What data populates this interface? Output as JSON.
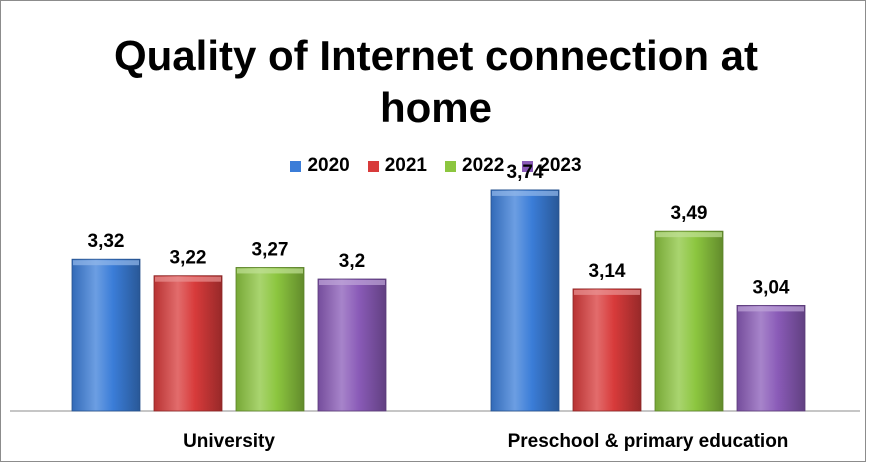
{
  "chart_data": {
    "type": "bar",
    "title_lines": [
      "Quality of Internet connection at",
      "home"
    ],
    "categories": [
      "University",
      "Preschool & primary education"
    ],
    "series": [
      {
        "name": "2020",
        "color": "#3b7dd8",
        "values": [
          3.32,
          3.74
        ],
        "labels": [
          "3,32",
          "3,74"
        ]
      },
      {
        "name": "2021",
        "color": "#d83b3b",
        "values": [
          3.22,
          3.14
        ],
        "labels": [
          "3,22",
          "3,14"
        ]
      },
      {
        "name": "2022",
        "color": "#8cc63f",
        "values": [
          3.27,
          3.49
        ],
        "labels": [
          "3,27",
          "3,49"
        ]
      },
      {
        "name": "2023",
        "color": "#8a5bb8",
        "values": [
          3.2,
          3.04
        ],
        "labels": [
          "3,2",
          "3,04"
        ]
      }
    ],
    "ylim": [
      2.4,
      3.8
    ],
    "legend_position": "top",
    "grid": false
  }
}
